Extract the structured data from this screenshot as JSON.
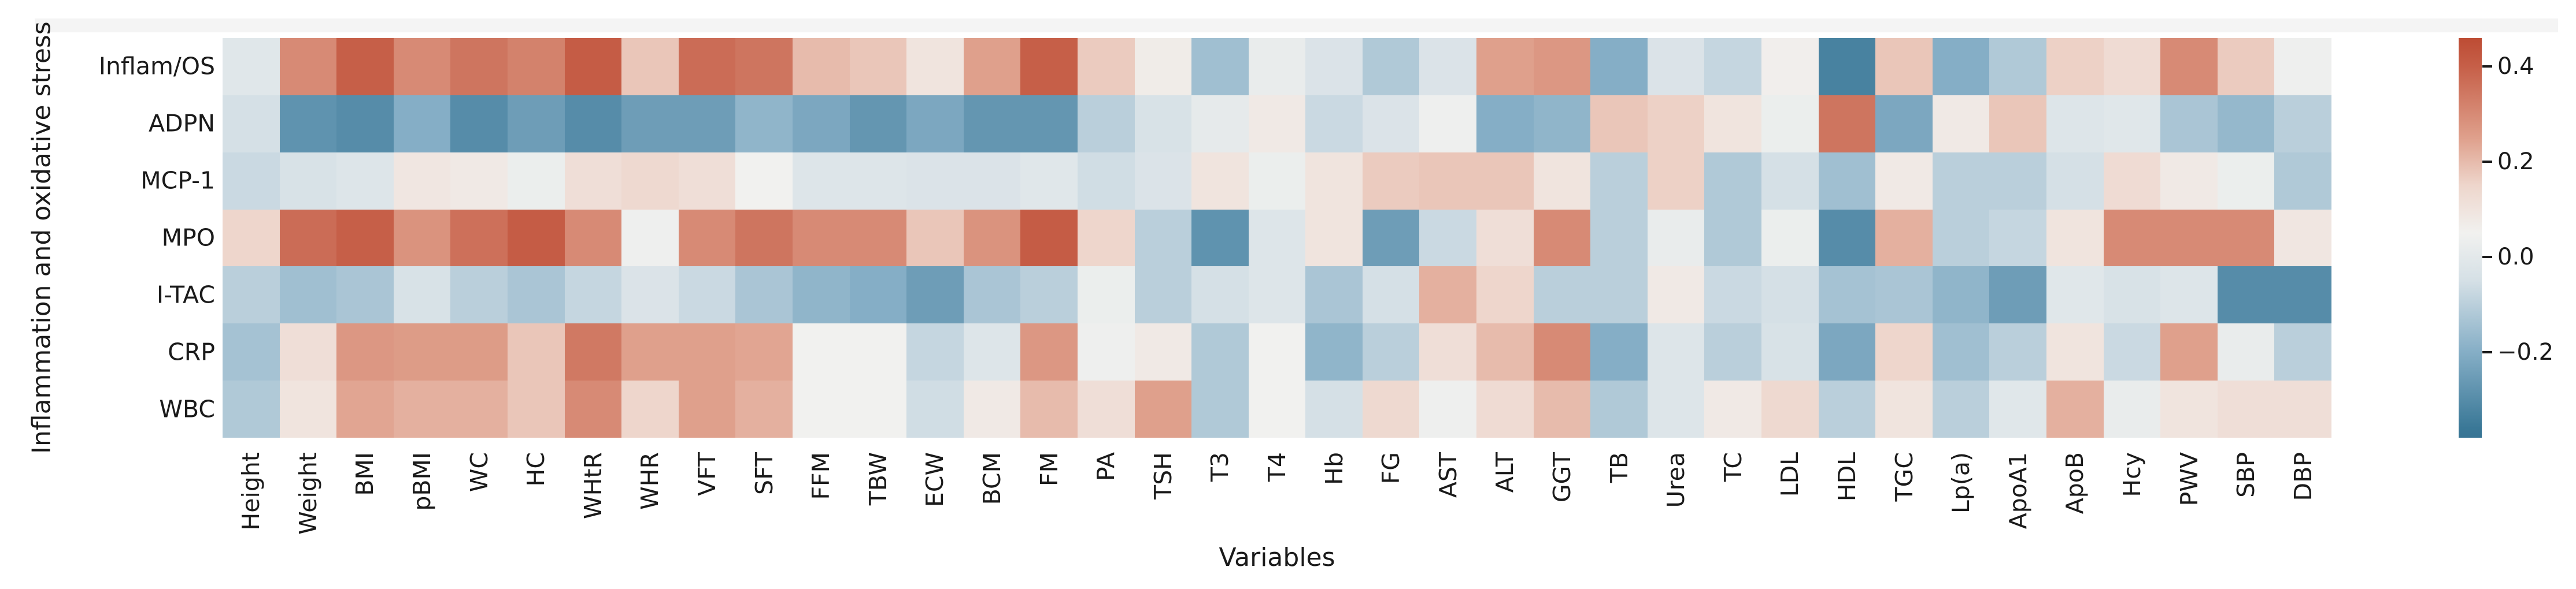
{
  "figure": {
    "background": "#ffffff",
    "text_color": "#1a1a1a",
    "top_strip_color": "#f4f4f4"
  },
  "chart_data": {
    "type": "heatmap",
    "title": "",
    "xlabel": "Variables",
    "ylabel": "Inflammation and oxidative stress",
    "legend_position": "right-colorbar",
    "grid": false,
    "rows": [
      "Inflam/OS",
      "ADPN",
      "MCP-1",
      "MPO",
      "I-TAC",
      "CRP",
      "WBC"
    ],
    "columns": [
      "Height",
      "Weight",
      "BMI",
      "pBMI",
      "WC",
      "HC",
      "WHtR",
      "WHR",
      "VFT",
      "SFT",
      "FFM",
      "TBW",
      "ECW",
      "BCM",
      "FM",
      "PA",
      "TSH",
      "T3",
      "T4",
      "Hb",
      "FG",
      "AST",
      "ALT",
      "GGT",
      "TB",
      "Urea",
      "TC",
      "LDL",
      "HDL",
      "TGC",
      "Lp(a)",
      "ApoA1",
      "ApoB",
      "Hcy",
      "PWV",
      "SBP",
      "DBP"
    ],
    "values": [
      [
        -0.01,
        0.3,
        0.4,
        0.3,
        0.35,
        0.32,
        0.41,
        0.18,
        0.37,
        0.35,
        0.2,
        0.18,
        0.1,
        0.25,
        0.4,
        0.17,
        0.07,
        -0.15,
        0.02,
        -0.03,
        -0.12,
        -0.03,
        0.25,
        0.27,
        -0.2,
        -0.03,
        -0.08,
        0.06,
        -0.33,
        0.18,
        -0.2,
        -0.12,
        0.16,
        0.13,
        0.3,
        0.17,
        0.04
      ],
      [
        -0.05,
        -0.28,
        -0.3,
        -0.2,
        -0.3,
        -0.25,
        -0.3,
        -0.25,
        -0.25,
        -0.18,
        -0.22,
        -0.27,
        -0.22,
        -0.27,
        -0.27,
        -0.1,
        -0.04,
        0.01,
        0.08,
        -0.07,
        -0.03,
        0.04,
        -0.2,
        -0.18,
        0.18,
        0.16,
        0.1,
        0.03,
        0.35,
        -0.22,
        0.08,
        0.18,
        -0.02,
        -0.01,
        -0.13,
        -0.17,
        -0.1
      ],
      [
        -0.07,
        -0.04,
        -0.02,
        0.09,
        0.08,
        0.03,
        0.12,
        0.14,
        0.12,
        0.05,
        -0.02,
        -0.02,
        -0.03,
        -0.03,
        -0.01,
        -0.06,
        -0.03,
        0.1,
        0.03,
        0.1,
        0.17,
        0.18,
        0.18,
        0.1,
        -0.1,
        0.16,
        -0.12,
        -0.05,
        -0.15,
        0.08,
        -0.1,
        -0.1,
        -0.05,
        0.13,
        0.08,
        0.03,
        -0.12
      ],
      [
        0.15,
        0.37,
        0.4,
        0.28,
        0.36,
        0.41,
        0.3,
        0.04,
        0.3,
        0.35,
        0.3,
        0.3,
        0.18,
        0.28,
        0.41,
        0.15,
        -0.1,
        -0.28,
        -0.02,
        0.1,
        -0.25,
        -0.07,
        0.12,
        0.3,
        -0.1,
        0.02,
        -0.12,
        0.03,
        -0.3,
        0.22,
        -0.1,
        -0.08,
        0.1,
        0.3,
        0.3,
        0.3,
        0.09
      ],
      [
        -0.1,
        -0.15,
        -0.13,
        -0.04,
        -0.1,
        -0.13,
        -0.08,
        -0.03,
        -0.07,
        -0.13,
        -0.18,
        -0.2,
        -0.25,
        -0.13,
        -0.1,
        0.03,
        -0.1,
        -0.05,
        -0.02,
        -0.13,
        -0.05,
        0.22,
        0.15,
        -0.1,
        -0.1,
        0.08,
        -0.07,
        -0.05,
        -0.14,
        -0.13,
        -0.18,
        -0.25,
        -0.01,
        -0.04,
        -0.02,
        -0.3,
        -0.3
      ],
      [
        -0.14,
        0.12,
        0.27,
        0.26,
        0.26,
        0.18,
        0.34,
        0.25,
        0.25,
        0.24,
        0.05,
        0.05,
        -0.08,
        -0.02,
        0.27,
        0.04,
        0.08,
        -0.12,
        0.05,
        -0.18,
        -0.1,
        0.12,
        0.2,
        0.3,
        -0.2,
        -0.02,
        -0.1,
        -0.04,
        -0.22,
        0.15,
        -0.15,
        -0.1,
        0.1,
        -0.07,
        0.25,
        0.02,
        -0.1
      ],
      [
        -0.12,
        0.1,
        0.24,
        0.22,
        0.22,
        0.18,
        0.3,
        0.15,
        0.25,
        0.22,
        0.05,
        0.05,
        -0.06,
        0.08,
        0.2,
        0.12,
        0.25,
        -0.12,
        0.05,
        -0.05,
        0.14,
        0.04,
        0.13,
        0.2,
        -0.12,
        -0.02,
        0.08,
        0.14,
        -0.1,
        0.1,
        -0.1,
        -0.01,
        0.22,
        0.02,
        0.1,
        0.12,
        0.12
      ]
    ],
    "colorbar": {
      "vmin": -0.38,
      "vmax": 0.46,
      "tick_values": [
        0.4,
        0.2,
        0.0,
        -0.2
      ],
      "tick_labels": [
        "0.4",
        "0.2",
        "0.0",
        "−0.2"
      ],
      "colormap_stops": [
        [
          -0.38,
          "#377494"
        ],
        [
          -0.36,
          "#3a7897"
        ],
        [
          -0.2,
          "#85aec6"
        ],
        [
          -0.05,
          "#d5e0e6"
        ],
        [
          0.05,
          "#f1f1ef"
        ],
        [
          0.15,
          "#eed6cc"
        ],
        [
          0.25,
          "#dfa08c"
        ],
        [
          0.4,
          "#c65f48"
        ],
        [
          0.46,
          "#bd4c34"
        ]
      ]
    }
  }
}
